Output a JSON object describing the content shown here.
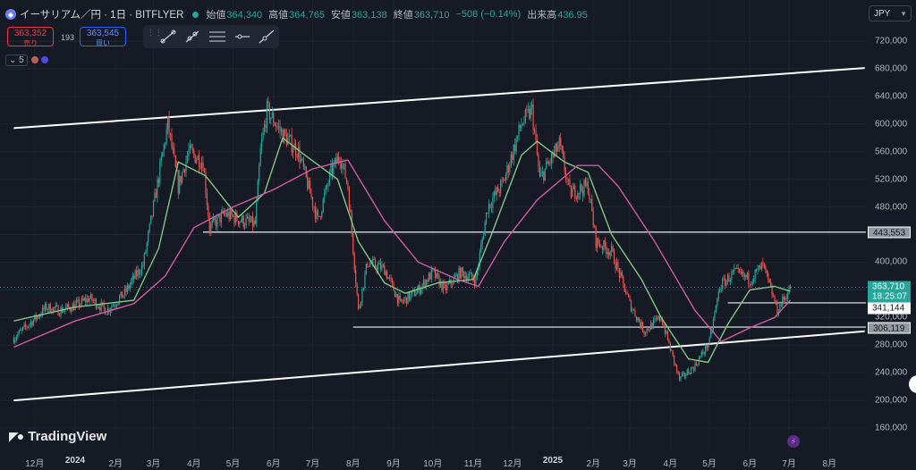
{
  "header": {
    "symbol_title": "イーサリアム／円 · 1日 · BITFLYER",
    "ohlc": [
      {
        "label": "始値",
        "value": "364,340"
      },
      {
        "label": "高値",
        "value": "364,765"
      },
      {
        "label": "安値",
        "value": "363,138"
      },
      {
        "label": "終値",
        "value": "363,710"
      },
      {
        "label": "",
        "value": "−508 (−0.14%)"
      },
      {
        "label": "出来高",
        "value": "436.95"
      }
    ]
  },
  "trade": {
    "sell_price": "363,352",
    "sell_label": "売り",
    "spread": "193",
    "buy_price": "363,545",
    "buy_label": "買い"
  },
  "interval": {
    "value": "5"
  },
  "currency": {
    "label": "JPY"
  },
  "branding": {
    "logo_text": "TradingView"
  },
  "price_tags": {
    "last_price": "363,710",
    "countdown": "18:25:07",
    "level_341": "341,144",
    "level_306": "306,119",
    "level_443": "443,553"
  },
  "colors": {
    "background": "#161a25",
    "up": "#26a69a",
    "down": "#ef5350",
    "ma_fast": "#81c784",
    "ma_slow": "#d05ca0",
    "channel": "#ffffff",
    "level": "#c8cad0"
  },
  "icons": [
    "ethereum-logo-icon",
    "live-status-icon",
    "trend-line-icon",
    "ray-icon",
    "parallel-channel-icon",
    "horizontal-line-icon",
    "extended-line-icon",
    "bolt-icon"
  ],
  "chart_data": {
    "type": "candlestick",
    "x_axis_labels": [
      "12月",
      "2024",
      "2月",
      "3月",
      "4月",
      "5月",
      "6月",
      "7月",
      "8月",
      "9月",
      "10月",
      "11月",
      "12月",
      "2025",
      "2月",
      "3月",
      "4月",
      "5月",
      "6月",
      "7月",
      "8月"
    ],
    "y_ticks": [
      160000,
      200000,
      240000,
      280000,
      320000,
      360000,
      400000,
      440000,
      480000,
      520000,
      560000,
      600000,
      640000,
      680000,
      720000
    ],
    "y_tick_labels": [
      "160,000",
      "200,000",
      "240,000",
      "280,000",
      "320,000",
      "360,000",
      "400,000",
      "440,000",
      "480,000",
      "520,000",
      "560,000",
      "600,000",
      "640,000",
      "680,000",
      "720,000"
    ],
    "ylim": [
      150000,
      740000
    ],
    "xlim": [
      "2023-11-15",
      "2025-08-28"
    ],
    "close_path": [
      [
        "2023-11-15",
        290000
      ],
      [
        "2023-12-01",
        318000
      ],
      [
        "2023-12-10",
        335000
      ],
      [
        "2023-12-20",
        330000
      ],
      [
        "2024-01-01",
        337000
      ],
      [
        "2024-01-12",
        348000
      ],
      [
        "2024-01-25",
        330000
      ],
      [
        "2024-02-08",
        355000
      ],
      [
        "2024-02-16",
        380000
      ],
      [
        "2024-02-22",
        395000
      ],
      [
        "2024-03-01",
        480000
      ],
      [
        "2024-03-12",
        600000
      ],
      [
        "2024-03-20",
        510000
      ],
      [
        "2024-03-28",
        560000
      ],
      [
        "2024-04-08",
        545000
      ],
      [
        "2024-04-13",
        450000
      ],
      [
        "2024-04-25",
        470000
      ],
      [
        "2024-05-08",
        460000
      ],
      [
        "2024-05-18",
        455000
      ],
      [
        "2024-05-22",
        560000
      ],
      [
        "2024-05-27",
        620000
      ],
      [
        "2024-06-08",
        585000
      ],
      [
        "2024-06-20",
        560000
      ],
      [
        "2024-07-05",
        460000
      ],
      [
        "2024-07-15",
        530000
      ],
      [
        "2024-07-22",
        555000
      ],
      [
        "2024-07-28",
        510000
      ],
      [
        "2024-08-05",
        330000
      ],
      [
        "2024-08-12",
        400000
      ],
      [
        "2024-08-25",
        390000
      ],
      [
        "2024-09-06",
        340000
      ],
      [
        "2024-09-20",
        360000
      ],
      [
        "2024-10-01",
        385000
      ],
      [
        "2024-10-10",
        360000
      ],
      [
        "2024-10-22",
        385000
      ],
      [
        "2024-11-03",
        375000
      ],
      [
        "2024-11-12",
        480000
      ],
      [
        "2024-11-24",
        515000
      ],
      [
        "2024-12-08",
        600000
      ],
      [
        "2024-12-16",
        620000
      ],
      [
        "2024-12-22",
        520000
      ],
      [
        "2025-01-06",
        570000
      ],
      [
        "2025-01-14",
        500000
      ],
      [
        "2025-01-28",
        510000
      ],
      [
        "2025-02-03",
        430000
      ],
      [
        "2025-02-15",
        415000
      ],
      [
        "2025-03-01",
        340000
      ],
      [
        "2025-03-12",
        300000
      ],
      [
        "2025-03-25",
        320000
      ],
      [
        "2025-04-08",
        230000
      ],
      [
        "2025-04-20",
        250000
      ],
      [
        "2025-05-01",
        285000
      ],
      [
        "2025-05-09",
        365000
      ],
      [
        "2025-05-20",
        385000
      ],
      [
        "2025-06-01",
        375000
      ],
      [
        "2025-06-11",
        395000
      ],
      [
        "2025-06-22",
        330000
      ],
      [
        "2025-07-02",
        363710
      ]
    ],
    "channel_upper": [
      [
        "2023-11-15",
        594000
      ],
      [
        "2025-08-28",
        681000
      ]
    ],
    "channel_lower": [
      [
        "2023-11-15",
        200000
      ],
      [
        "2025-08-28",
        300000
      ]
    ],
    "levels": [
      {
        "price": 443553,
        "from": "2024-04-08"
      },
      {
        "price": 341144,
        "from": "2025-05-15"
      },
      {
        "price": 306119,
        "from": "2024-08-01"
      }
    ],
    "moving_averages": [
      {
        "color": "#81c784",
        "path": [
          [
            "2023-11-15",
            315000
          ],
          [
            "2024-01-01",
            335000
          ],
          [
            "2024-02-15",
            345000
          ],
          [
            "2024-03-05",
            420000
          ],
          [
            "2024-03-20",
            545000
          ],
          [
            "2024-04-10",
            525000
          ],
          [
            "2024-05-05",
            465000
          ],
          [
            "2024-05-25",
            500000
          ],
          [
            "2024-06-08",
            580000
          ],
          [
            "2024-06-25",
            555000
          ],
          [
            "2024-07-20",
            520000
          ],
          [
            "2024-08-05",
            430000
          ],
          [
            "2024-08-25",
            370000
          ],
          [
            "2024-09-10",
            355000
          ],
          [
            "2024-10-05",
            370000
          ],
          [
            "2024-11-01",
            375000
          ],
          [
            "2024-11-15",
            440000
          ],
          [
            "2024-12-08",
            555000
          ],
          [
            "2024-12-20",
            575000
          ],
          [
            "2025-01-10",
            545000
          ],
          [
            "2025-01-28",
            530000
          ],
          [
            "2025-02-15",
            440000
          ],
          [
            "2025-03-10",
            375000
          ],
          [
            "2025-03-25",
            320000
          ],
          [
            "2025-04-15",
            260000
          ],
          [
            "2025-04-30",
            255000
          ],
          [
            "2025-05-15",
            310000
          ],
          [
            "2025-06-01",
            360000
          ],
          [
            "2025-06-20",
            365000
          ],
          [
            "2025-07-02",
            358000
          ]
        ]
      },
      {
        "color": "#d05ca0",
        "path": [
          [
            "2023-11-15",
            277000
          ],
          [
            "2024-01-01",
            315000
          ],
          [
            "2024-02-15",
            340000
          ],
          [
            "2024-03-10",
            380000
          ],
          [
            "2024-04-01",
            450000
          ],
          [
            "2024-05-01",
            480000
          ],
          [
            "2024-06-01",
            505000
          ],
          [
            "2024-07-01",
            535000
          ],
          [
            "2024-07-28",
            548000
          ],
          [
            "2024-08-25",
            460000
          ],
          [
            "2024-09-20",
            400000
          ],
          [
            "2024-10-20",
            375000
          ],
          [
            "2024-11-05",
            365000
          ],
          [
            "2024-11-25",
            430000
          ],
          [
            "2024-12-20",
            490000
          ],
          [
            "2025-01-20",
            540000
          ],
          [
            "2025-02-05",
            540000
          ],
          [
            "2025-02-20",
            510000
          ],
          [
            "2025-03-20",
            430000
          ],
          [
            "2025-04-20",
            330000
          ],
          [
            "2025-05-10",
            285000
          ],
          [
            "2025-06-01",
            305000
          ],
          [
            "2025-06-20",
            320000
          ],
          [
            "2025-07-02",
            345000
          ]
        ]
      }
    ]
  }
}
